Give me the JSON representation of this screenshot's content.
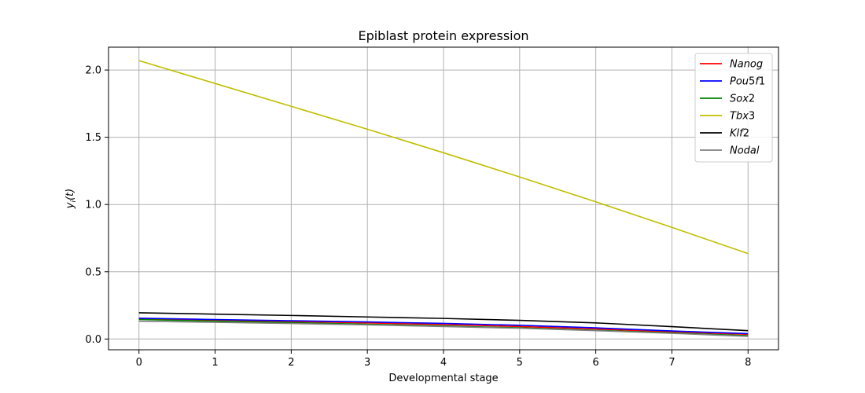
{
  "chart_data": {
    "type": "line",
    "title": "Epiblast protein expression",
    "xlabel": "Developmental stage",
    "ylabel": {
      "var": "y",
      "sub": "i",
      "arg": "(t)"
    },
    "xlim": [
      -0.4,
      8.4
    ],
    "ylim": [
      -0.08,
      2.17
    ],
    "xticks": [
      0,
      1,
      2,
      3,
      4,
      5,
      6,
      7,
      8
    ],
    "yticks": [
      "0.0",
      "0.5",
      "1.0",
      "1.5",
      "2.0"
    ],
    "grid": true,
    "legend_position": "top-right",
    "x": [
      0,
      1,
      2,
      3,
      4,
      5,
      6,
      7,
      8
    ],
    "series": [
      {
        "name": "Nanog",
        "label_parts": [
          "Nanog"
        ],
        "color": "#ff0000",
        "values": [
          0.15,
          0.14,
          0.13,
          0.12,
          0.108,
          0.093,
          0.075,
          0.053,
          0.035
        ]
      },
      {
        "name": "Pou5f1",
        "label_parts": [
          "Pou",
          "5",
          "f",
          "1"
        ],
        "color": "#0000ff",
        "values": [
          0.155,
          0.145,
          0.136,
          0.127,
          0.116,
          0.102,
          0.083,
          0.06,
          0.04
        ]
      },
      {
        "name": "Sox2",
        "label_parts": [
          "Sox",
          "2"
        ],
        "color": "#008000",
        "values": [
          0.145,
          0.133,
          0.122,
          0.11,
          0.097,
          0.083,
          0.065,
          0.045,
          0.025
        ]
      },
      {
        "name": "Tbx3",
        "label_parts": [
          "Tbx",
          "3"
        ],
        "color": "#bfbf00",
        "values": [
          2.07,
          1.9,
          1.73,
          1.56,
          1.385,
          1.205,
          1.02,
          0.83,
          0.635
        ]
      },
      {
        "name": "Klf2",
        "label_parts": [
          "Klf",
          "2"
        ],
        "color": "#000000",
        "values": [
          0.195,
          0.185,
          0.175,
          0.164,
          0.153,
          0.139,
          0.12,
          0.092,
          0.062
        ]
      },
      {
        "name": "Nodal",
        "label_parts": [
          "Nodal"
        ],
        "color": "#808080",
        "values": [
          0.132,
          0.124,
          0.115,
          0.105,
          0.093,
          0.08,
          0.062,
          0.042,
          0.02
        ]
      }
    ]
  }
}
